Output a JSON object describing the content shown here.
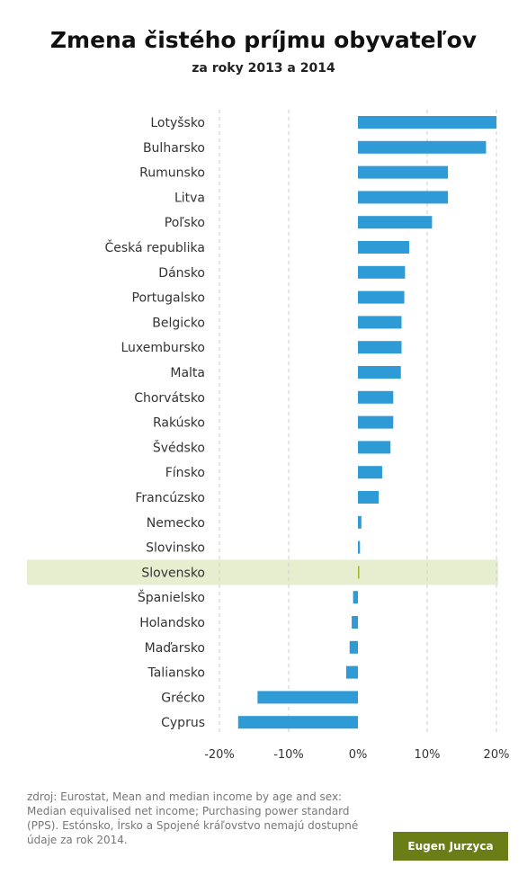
{
  "header": {
    "title": "Zmena čistého príjmu obyvateľov",
    "subtitle": "za roky 2013  a 2014"
  },
  "footer": {
    "source": "zdroj: Eurostat, Mean and median income by age and sex: Median equivalised net income; Purchasing power standard (PPS). Estónsko, Írsko a Spojené kráľovstvo nemajú dostupné údaje za rok 2014.",
    "author": "Eugen Jurzyca"
  },
  "colors": {
    "bar": "#2e9bd6",
    "highlight_background": "#e7edcf",
    "highlight_bar": "#a2b531",
    "grid": "#cccccc"
  },
  "chart_data": {
    "type": "bar",
    "orientation": "horizontal",
    "categories": [
      "Lotyšsko",
      "Bulharsko",
      "Rumunsko",
      "Litva",
      "Poľsko",
      "Česká republika",
      "Dánsko",
      "Portugalsko",
      "Belgicko",
      "Luxembursko",
      "Malta",
      "Chorvátsko",
      "Rakúsko",
      "Švédsko",
      "Fínsko",
      "Francúzsko",
      "Nemecko",
      "Slovinsko",
      "Slovensko",
      "Španielsko",
      "Holandsko",
      "Maďarsko",
      "Taliansko",
      "Grécko",
      "Cyprus"
    ],
    "values": [
      20.0,
      18.5,
      13.0,
      13.0,
      10.7,
      7.4,
      6.8,
      6.7,
      6.3,
      6.3,
      6.2,
      5.1,
      5.1,
      4.7,
      3.5,
      3.0,
      0.5,
      0.3,
      0.2,
      -0.7,
      -0.9,
      -1.2,
      -1.7,
      -14.5,
      -17.3
    ],
    "highlight": "Slovensko",
    "xlim": [
      -20,
      20
    ],
    "xticks": [
      -20,
      -10,
      0,
      10,
      20
    ],
    "xtick_labels": [
      "-20%",
      "-10%",
      "0%",
      "10%",
      "20%"
    ],
    "grid": true,
    "xlabel": "",
    "ylabel": ""
  }
}
